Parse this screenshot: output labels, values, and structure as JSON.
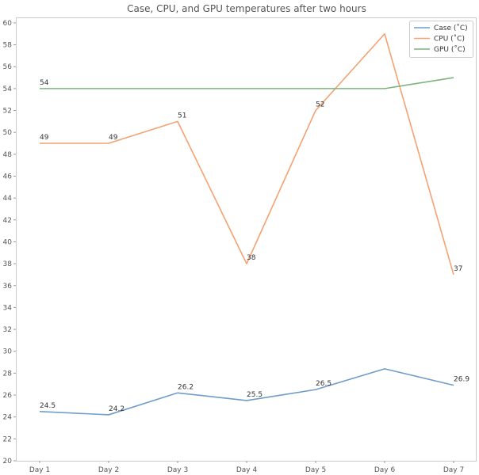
{
  "chart_data": {
    "type": "line",
    "title": "Case, CPU, and GPU temperatures after two hours",
    "xlabel": "",
    "ylabel": "",
    "categories": [
      "Day 1",
      "Day 2",
      "Day 3",
      "Day 4",
      "Day 5",
      "Day 6",
      "Day 7"
    ],
    "ylim": [
      20,
      60.5
    ],
    "yticks": [
      20,
      22,
      24,
      26,
      28,
      30,
      32,
      34,
      36,
      38,
      40,
      42,
      44,
      46,
      48,
      50,
      52,
      54,
      56,
      58,
      60
    ],
    "grid": false,
    "legend_position": "top-right",
    "series": [
      {
        "name": "Case (˚C)",
        "color": "#6f9cc9",
        "values": [
          24.5,
          24.2,
          26.2,
          25.5,
          26.5,
          28.4,
          26.9
        ],
        "labels": [
          "24.5",
          "24.2",
          "26.2",
          "25.5",
          "26.5",
          "",
          "26.9"
        ]
      },
      {
        "name": "CPU (˚C)",
        "color": "#f3a272",
        "values": [
          49,
          49,
          51,
          38,
          52,
          59,
          37
        ],
        "labels": [
          "49",
          "49",
          "51",
          "38",
          "52",
          "",
          "37"
        ]
      },
      {
        "name": "GPU (˚C)",
        "color": "#7cb47c",
        "values": [
          54,
          54,
          54,
          54,
          54,
          54,
          55
        ],
        "labels": [
          "54",
          "",
          "",
          "",
          "",
          "",
          ""
        ]
      }
    ]
  }
}
